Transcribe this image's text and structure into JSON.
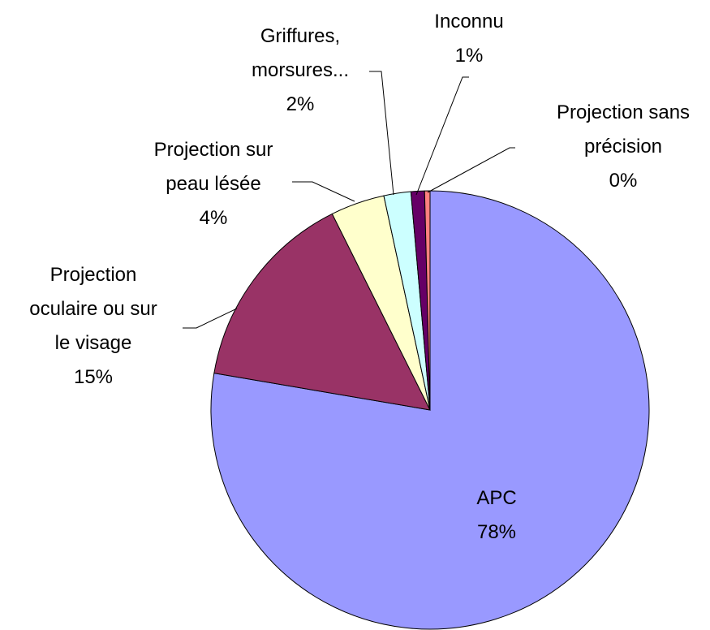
{
  "chart_data": {
    "type": "pie",
    "categories": [
      [
        "APC"
      ],
      [
        "Projection",
        "oculaire ou sur",
        "le visage"
      ],
      [
        "Projection sur",
        "peau lésée"
      ],
      [
        "Griffures,",
        "morsures..."
      ],
      [
        "Inconnu"
      ],
      [
        "Projection sans",
        "précision"
      ]
    ],
    "values": [
      78,
      15,
      4,
      2,
      1,
      0.4
    ],
    "value_labels": [
      "78%",
      "15%",
      "4%",
      "2%",
      "1%",
      "0%"
    ],
    "colors": [
      "#9999ff",
      "#993366",
      "#ffffcc",
      "#ccffff",
      "#660066",
      "#ff8080"
    ]
  }
}
